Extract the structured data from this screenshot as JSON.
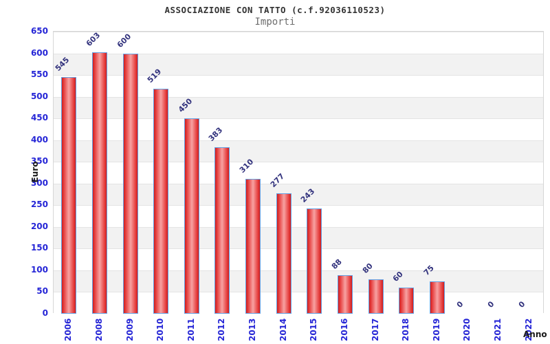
{
  "chart_data": {
    "type": "bar",
    "title": "ASSOCIAZIONE CON TATTO (c.f.92036110523)",
    "subtitle": "Importi",
    "xlabel": "Anno",
    "ylabel": "Euro",
    "categories": [
      "2006",
      "2008",
      "2009",
      "2010",
      "2011",
      "2012",
      "2013",
      "2014",
      "2015",
      "2016",
      "2017",
      "2018",
      "2019",
      "2020",
      "2021",
      "2022"
    ],
    "values": [
      545,
      603,
      600,
      519,
      450,
      383,
      310,
      277,
      243,
      88,
      80,
      60,
      75,
      0,
      0,
      0
    ],
    "ylim": [
      0,
      650
    ],
    "yticks": [
      0,
      50,
      100,
      150,
      200,
      250,
      300,
      350,
      400,
      450,
      500,
      550,
      600,
      650
    ],
    "grid": true,
    "legend": "none",
    "style": {
      "background": "#ffffff",
      "title_color": "#333333",
      "subtitle_color": "#6e6e6e",
      "bar_fill_dark": "#d11d1d",
      "bar_fill_mid": "#e84848",
      "bar_fill_light": "#f7a2a2",
      "bar_border": "#63a0e3",
      "value_label_color": "#32327d",
      "axis_tick_color": "#2525d6",
      "band_color": "#f2f2f2",
      "grid_color": "#e4e4e4",
      "plot_border_color": "#d6d6d6",
      "axis_title_color": "#1a1a1a"
    }
  }
}
